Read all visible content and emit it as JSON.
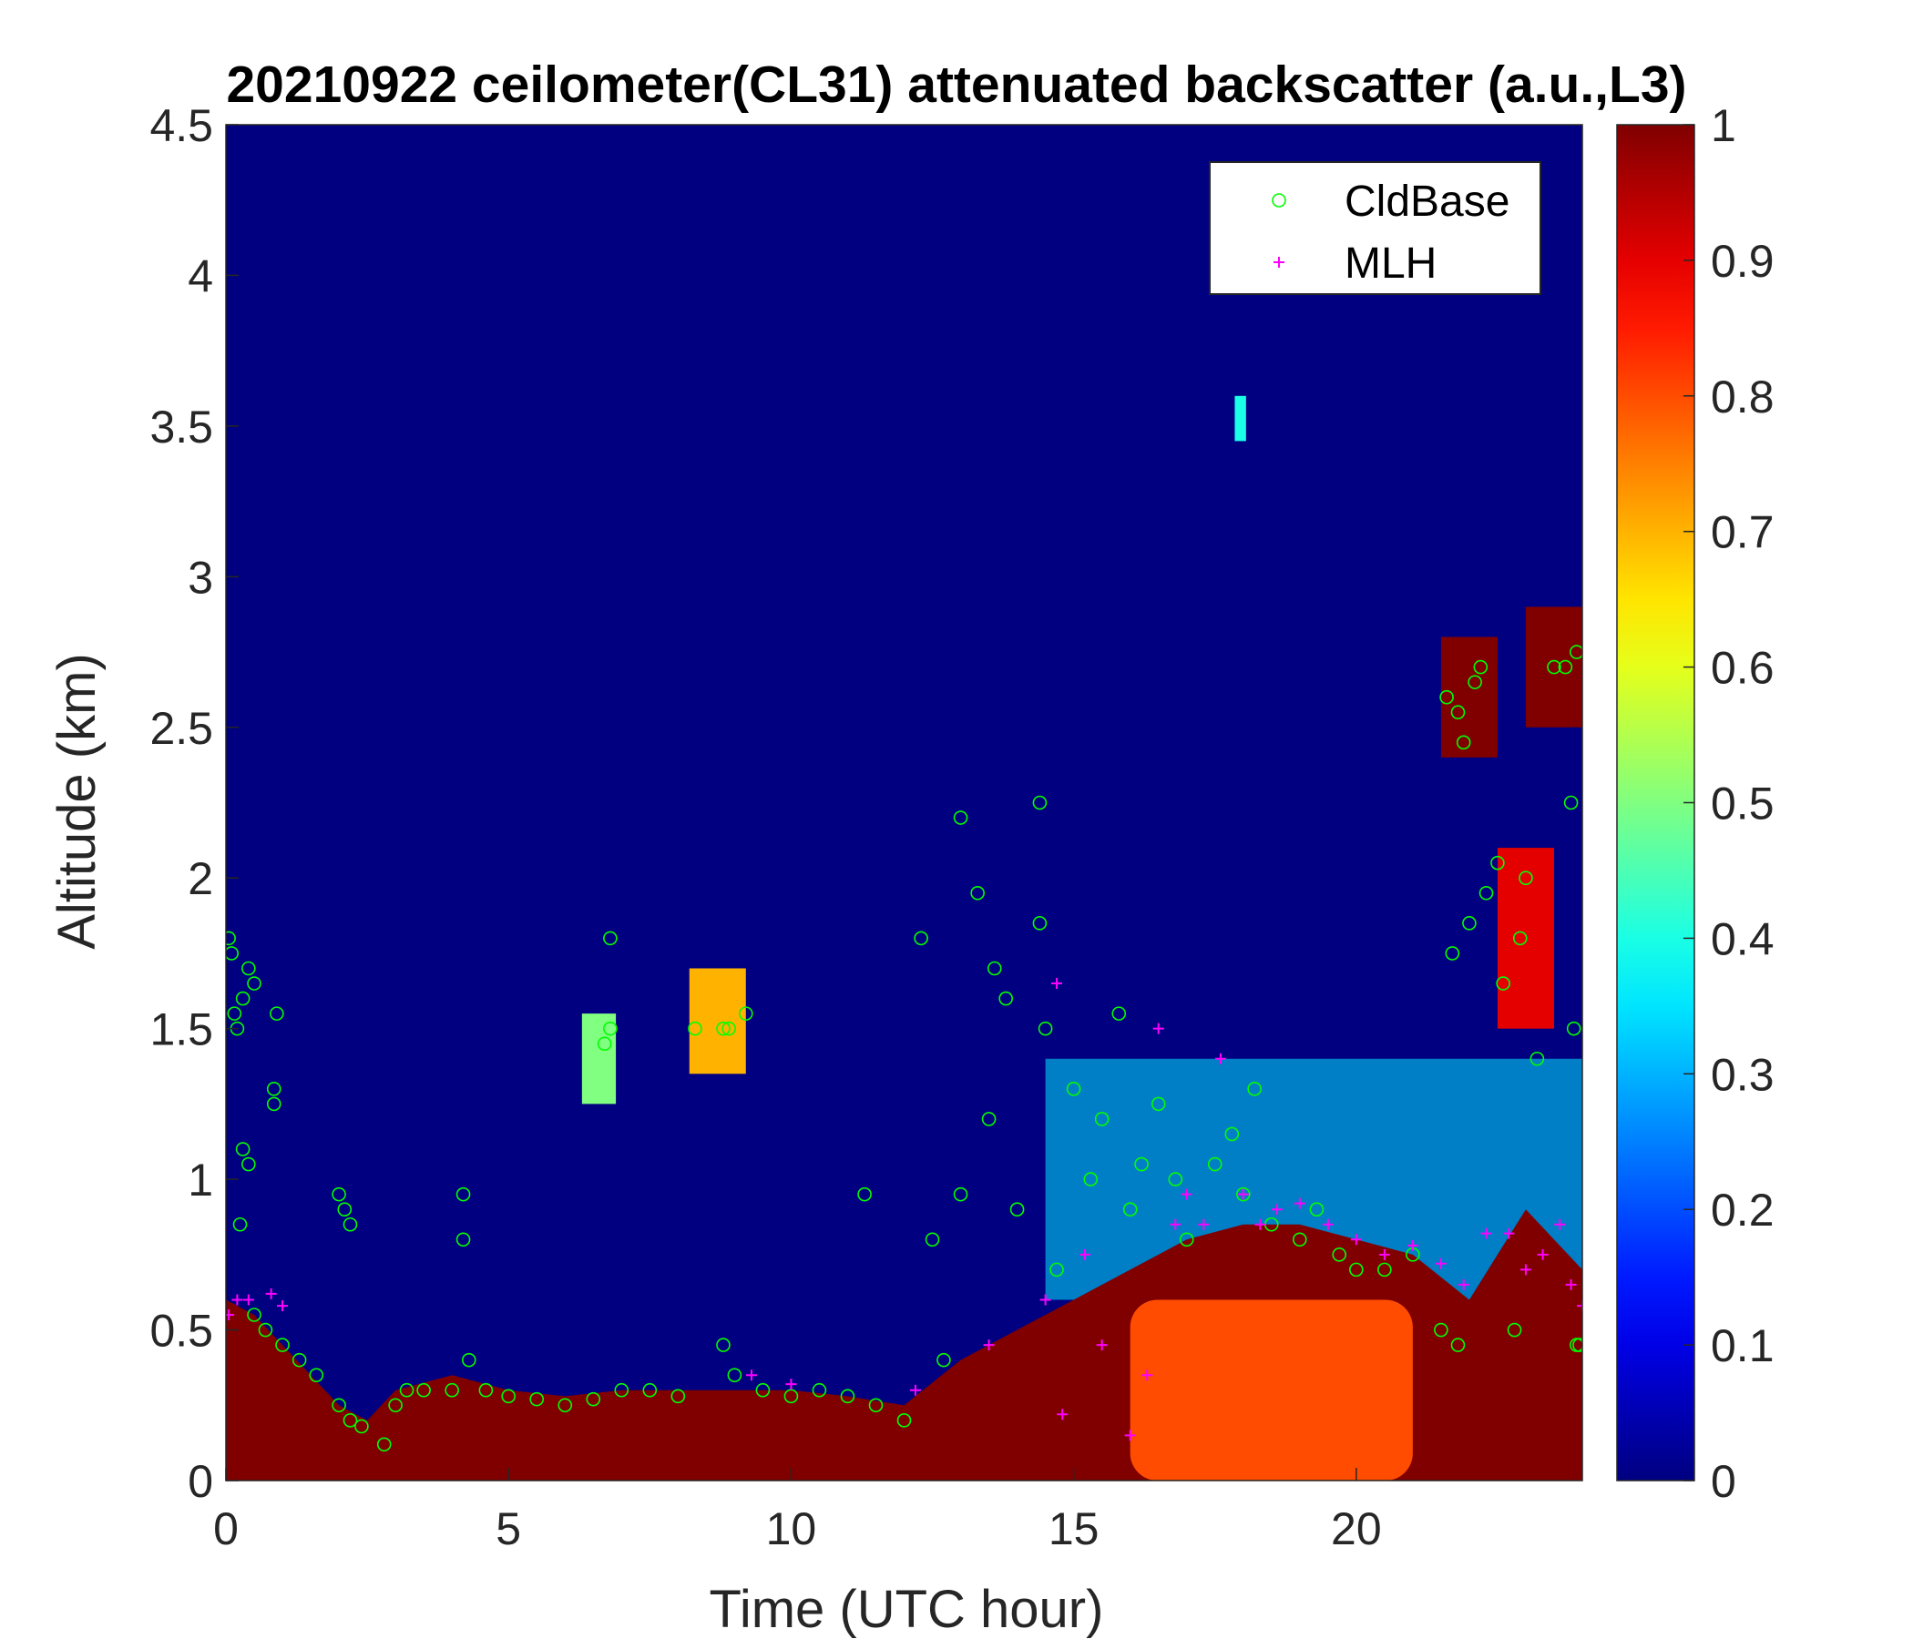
{
  "chart_data": {
    "type": "heatmap",
    "title": "20210922 ceilometer(CL31) attenuated backscatter (a.u.,L3)",
    "xlabel": "Time (UTC hour)",
    "ylabel": "Altitude (km)",
    "xlim": [
      0,
      24
    ],
    "ylim": [
      0,
      4.5
    ],
    "xticks": [
      0,
      5,
      10,
      15,
      20
    ],
    "yticks": [
      0,
      0.5,
      1,
      1.5,
      2,
      2.5,
      3,
      3.5,
      4,
      4.5
    ],
    "ytick_labels": [
      "0",
      "0.5",
      "1",
      "1.5",
      "2",
      "2.5",
      "3",
      "3.5",
      "4",
      "4.5"
    ],
    "colorbar": {
      "colormap": "jet",
      "range": [
        0,
        1
      ],
      "ticks": [
        0,
        0.1,
        0.2,
        0.3,
        0.4,
        0.5,
        0.6,
        0.7,
        0.8,
        0.9,
        1
      ],
      "tick_labels": [
        "0",
        "0.1",
        "0.2",
        "0.3",
        "0.4",
        "0.5",
        "0.6",
        "0.7",
        "0.8",
        "0.9",
        "1"
      ]
    },
    "background_value": 0,
    "legend": {
      "position": "top-right",
      "entries": [
        {
          "name": "CldBase",
          "marker": "circle",
          "color": "#00ff00"
        },
        {
          "name": "MLH",
          "marker": "plus",
          "color": "#ff00ff"
        }
      ]
    },
    "boundary_layer_top_km": [
      [
        0,
        0.6
      ],
      [
        0.5,
        0.55
      ],
      [
        1,
        0.45
      ],
      [
        1.5,
        0.35
      ],
      [
        2,
        0.25
      ],
      [
        2.5,
        0.2
      ],
      [
        3,
        0.3
      ],
      [
        4,
        0.35
      ],
      [
        5,
        0.3
      ],
      [
        6,
        0.28
      ],
      [
        7,
        0.3
      ],
      [
        8,
        0.3
      ],
      [
        9,
        0.3
      ],
      [
        10,
        0.3
      ],
      [
        11,
        0.28
      ],
      [
        12,
        0.25
      ],
      [
        13,
        0.4
      ],
      [
        14,
        0.5
      ],
      [
        15,
        0.6
      ],
      [
        16,
        0.7
      ],
      [
        17,
        0.8
      ],
      [
        18,
        0.85
      ],
      [
        19,
        0.85
      ],
      [
        20,
        0.8
      ],
      [
        21,
        0.75
      ],
      [
        22,
        0.6
      ],
      [
        23,
        0.9
      ],
      [
        24,
        0.7
      ]
    ],
    "orange_region": {
      "t_start": 16,
      "t_end": 21,
      "top_km": 0.6,
      "value": 0.8
    },
    "cloud_layers": [
      {
        "t_start": 21.5,
        "t_end": 22.5,
        "bottom_km": 2.4,
        "top_km": 2.8,
        "value": 1
      },
      {
        "t_start": 23,
        "t_end": 24,
        "bottom_km": 2.5,
        "top_km": 2.9,
        "value": 1
      },
      {
        "t_start": 22.5,
        "t_end": 23.5,
        "bottom_km": 1.5,
        "top_km": 2.1,
        "value": 0.9
      },
      {
        "t_start": 8.2,
        "t_end": 9.2,
        "bottom_km": 1.35,
        "top_km": 1.7,
        "value": 0.7
      },
      {
        "t_start": 6.3,
        "t_end": 6.9,
        "bottom_km": 1.25,
        "top_km": 1.55,
        "value": 0.5
      },
      {
        "t_start": 17.85,
        "t_end": 18.05,
        "bottom_km": 3.45,
        "top_km": 3.6,
        "value": 0.4
      }
    ],
    "aerosol_plume": {
      "t_start": 14.5,
      "t_end": 24,
      "bottom_km": 0.6,
      "top_km": 1.4,
      "value": 0.35
    },
    "series": [
      {
        "name": "CldBase",
        "points": [
          [
            0.05,
            1.8
          ],
          [
            0.1,
            1.75
          ],
          [
            0.15,
            1.55
          ],
          [
            0.2,
            1.5
          ],
          [
            0.3,
            1.6
          ],
          [
            0.4,
            1.7
          ],
          [
            0.5,
            1.65
          ],
          [
            0.3,
            1.1
          ],
          [
            0.4,
            1.05
          ],
          [
            0.25,
            0.85
          ],
          [
            0.85,
            1.3
          ],
          [
            0.9,
            1.55
          ],
          [
            0.85,
            1.25
          ],
          [
            0.5,
            0.55
          ],
          [
            0.7,
            0.5
          ],
          [
            1.0,
            0.45
          ],
          [
            1.3,
            0.4
          ],
          [
            1.6,
            0.35
          ],
          [
            2.0,
            0.25
          ],
          [
            2.2,
            0.2
          ],
          [
            2.4,
            0.18
          ],
          [
            2.0,
            0.95
          ],
          [
            2.1,
            0.9
          ],
          [
            2.2,
            0.85
          ],
          [
            2.8,
            0.12
          ],
          [
            3.0,
            0.25
          ],
          [
            3.2,
            0.3
          ],
          [
            3.5,
            0.3
          ],
          [
            4.0,
            0.3
          ],
          [
            4.2,
            0.95
          ],
          [
            4.2,
            0.8
          ],
          [
            4.3,
            0.4
          ],
          [
            4.6,
            0.3
          ],
          [
            5.0,
            0.28
          ],
          [
            5.5,
            0.27
          ],
          [
            6.0,
            0.25
          ],
          [
            6.5,
            0.27
          ],
          [
            6.7,
            1.45
          ],
          [
            6.8,
            1.5
          ],
          [
            6.8,
            1.8
          ],
          [
            7.0,
            0.3
          ],
          [
            7.5,
            0.3
          ],
          [
            8.0,
            0.28
          ],
          [
            8.3,
            1.5
          ],
          [
            8.8,
            1.5
          ],
          [
            8.9,
            1.5
          ],
          [
            9.2,
            1.55
          ],
          [
            8.8,
            0.45
          ],
          [
            9.0,
            0.35
          ],
          [
            9.5,
            0.3
          ],
          [
            10.0,
            0.28
          ],
          [
            10.5,
            0.3
          ],
          [
            11.0,
            0.28
          ],
          [
            11.3,
            0.95
          ],
          [
            11.5,
            0.25
          ],
          [
            12.0,
            0.2
          ],
          [
            12.3,
            1.8
          ],
          [
            12.5,
            0.8
          ],
          [
            12.7,
            0.4
          ],
          [
            13.0,
            0.95
          ],
          [
            13.0,
            2.2
          ],
          [
            13.3,
            1.95
          ],
          [
            13.5,
            1.2
          ],
          [
            13.6,
            1.7
          ],
          [
            13.8,
            1.6
          ],
          [
            14.0,
            0.9
          ],
          [
            14.4,
            2.25
          ],
          [
            14.4,
            1.85
          ],
          [
            14.5,
            1.5
          ],
          [
            14.7,
            0.7
          ],
          [
            15.0,
            1.3
          ],
          [
            15.3,
            1.0
          ],
          [
            15.5,
            1.2
          ],
          [
            15.8,
            1.55
          ],
          [
            16.0,
            0.9
          ],
          [
            16.2,
            1.05
          ],
          [
            16.5,
            1.25
          ],
          [
            16.8,
            1.0
          ],
          [
            17.0,
            0.8
          ],
          [
            17.5,
            1.05
          ],
          [
            17.8,
            1.15
          ],
          [
            18.0,
            0.95
          ],
          [
            18.2,
            1.3
          ],
          [
            18.5,
            0.85
          ],
          [
            19.0,
            0.8
          ],
          [
            19.3,
            0.9
          ],
          [
            19.7,
            0.75
          ],
          [
            20.0,
            0.7
          ],
          [
            20.5,
            0.7
          ],
          [
            21.0,
            0.75
          ],
          [
            21.5,
            0.5
          ],
          [
            21.8,
            0.45
          ],
          [
            21.6,
            2.6
          ],
          [
            21.8,
            2.55
          ],
          [
            21.9,
            2.45
          ],
          [
            22.1,
            2.65
          ],
          [
            22.2,
            2.7
          ],
          [
            21.7,
            1.75
          ],
          [
            22.0,
            1.85
          ],
          [
            22.3,
            1.95
          ],
          [
            22.5,
            2.05
          ],
          [
            22.6,
            1.65
          ],
          [
            22.8,
            0.5
          ],
          [
            22.9,
            1.8
          ],
          [
            23.0,
            2.0
          ],
          [
            23.2,
            1.4
          ],
          [
            23.5,
            2.7
          ],
          [
            23.7,
            2.7
          ],
          [
            23.9,
            2.75
          ],
          [
            23.8,
            2.25
          ],
          [
            23.85,
            1.5
          ],
          [
            23.9,
            0.45
          ],
          [
            23.95,
            0.45
          ]
        ]
      },
      {
        "name": "MLH",
        "points": [
          [
            0.05,
            0.55
          ],
          [
            0.2,
            0.6
          ],
          [
            0.4,
            0.6
          ],
          [
            0.8,
            0.62
          ],
          [
            1.0,
            0.58
          ],
          [
            9.3,
            0.35
          ],
          [
            10.0,
            0.32
          ],
          [
            12.2,
            0.3
          ],
          [
            13.5,
            0.45
          ],
          [
            14.5,
            0.6
          ],
          [
            14.7,
            1.65
          ],
          [
            14.8,
            0.22
          ],
          [
            15.2,
            0.75
          ],
          [
            15.5,
            0.45
          ],
          [
            16.0,
            0.15
          ],
          [
            16.3,
            0.35
          ],
          [
            16.5,
            1.5
          ],
          [
            16.8,
            0.85
          ],
          [
            17.0,
            0.95
          ],
          [
            17.3,
            0.85
          ],
          [
            17.6,
            1.4
          ],
          [
            18.0,
            0.95
          ],
          [
            18.3,
            0.85
          ],
          [
            18.6,
            0.9
          ],
          [
            19.0,
            0.92
          ],
          [
            19.5,
            0.85
          ],
          [
            20.0,
            0.8
          ],
          [
            20.5,
            0.75
          ],
          [
            21.0,
            0.78
          ],
          [
            21.5,
            0.72
          ],
          [
            21.9,
            0.65
          ],
          [
            22.3,
            0.82
          ],
          [
            22.7,
            0.82
          ],
          [
            23.0,
            0.7
          ],
          [
            23.3,
            0.75
          ],
          [
            23.6,
            0.85
          ],
          [
            23.8,
            0.65
          ],
          [
            24.0,
            0.58
          ]
        ]
      }
    ]
  }
}
